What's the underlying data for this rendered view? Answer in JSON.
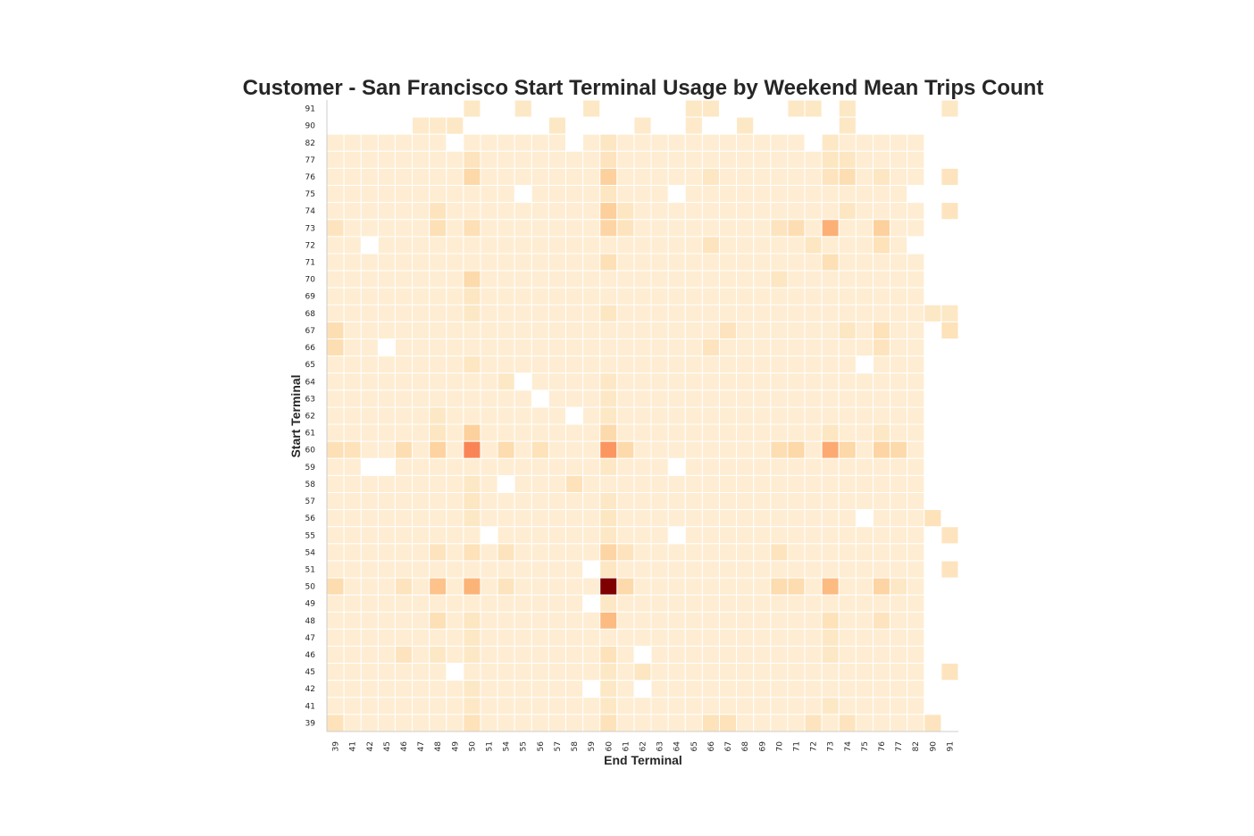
{
  "chart_data": {
    "type": "heatmap",
    "title": "Customer - San Francisco Start Terminal Usage by Weekend Mean Trips Count",
    "xlabel": "End Terminal",
    "ylabel": "Start Terminal",
    "x_categories": [
      "39",
      "41",
      "42",
      "45",
      "46",
      "47",
      "48",
      "49",
      "50",
      "51",
      "54",
      "55",
      "56",
      "57",
      "58",
      "59",
      "60",
      "61",
      "62",
      "63",
      "64",
      "65",
      "66",
      "67",
      "68",
      "69",
      "70",
      "71",
      "72",
      "73",
      "74",
      "75",
      "76",
      "77",
      "82",
      "90",
      "91"
    ],
    "y_categories": [
      "91",
      "90",
      "82",
      "77",
      "76",
      "75",
      "74",
      "73",
      "72",
      "71",
      "70",
      "69",
      "68",
      "67",
      "66",
      "65",
      "64",
      "63",
      "62",
      "61",
      "60",
      "59",
      "58",
      "57",
      "56",
      "55",
      "54",
      "51",
      "50",
      "49",
      "48",
      "47",
      "46",
      "45",
      "42",
      "41",
      "39"
    ],
    "colormap": "OrRd",
    "colors": {
      "low": "#fff7ec",
      "mid": "#fdbb84",
      "high": "#7f0000",
      "grid": "#ffffff",
      "axis": "#cccccc"
    },
    "grid": false,
    "legend": "none",
    "default_value": 0.3,
    "missing": [
      [
        "91",
        "39"
      ],
      [
        "91",
        "41"
      ],
      [
        "91",
        "42"
      ],
      [
        "91",
        "45"
      ],
      [
        "91",
        "46"
      ],
      [
        "91",
        "47"
      ],
      [
        "91",
        "48"
      ],
      [
        "91",
        "49"
      ],
      [
        "91",
        "51"
      ],
      [
        "91",
        "54"
      ],
      [
        "91",
        "56"
      ],
      [
        "91",
        "57"
      ],
      [
        "91",
        "58"
      ],
      [
        "91",
        "60"
      ],
      [
        "91",
        "61"
      ],
      [
        "91",
        "62"
      ],
      [
        "91",
        "63"
      ],
      [
        "91",
        "64"
      ],
      [
        "91",
        "67"
      ],
      [
        "91",
        "68"
      ],
      [
        "91",
        "69"
      ],
      [
        "91",
        "70"
      ],
      [
        "91",
        "73"
      ],
      [
        "91",
        "75"
      ],
      [
        "91",
        "76"
      ],
      [
        "91",
        "77"
      ],
      [
        "91",
        "82"
      ],
      [
        "91",
        "90"
      ],
      [
        "90",
        "39"
      ],
      [
        "90",
        "41"
      ],
      [
        "90",
        "42"
      ],
      [
        "90",
        "45"
      ],
      [
        "90",
        "46"
      ],
      [
        "90",
        "50"
      ],
      [
        "90",
        "51"
      ],
      [
        "90",
        "54"
      ],
      [
        "90",
        "55"
      ],
      [
        "90",
        "56"
      ],
      [
        "90",
        "58"
      ],
      [
        "90",
        "59"
      ],
      [
        "90",
        "60"
      ],
      [
        "90",
        "61"
      ],
      [
        "90",
        "63"
      ],
      [
        "90",
        "64"
      ],
      [
        "90",
        "66"
      ],
      [
        "90",
        "67"
      ],
      [
        "90",
        "69"
      ],
      [
        "90",
        "70"
      ],
      [
        "90",
        "71"
      ],
      [
        "90",
        "72"
      ],
      [
        "90",
        "73"
      ],
      [
        "90",
        "75"
      ],
      [
        "90",
        "76"
      ],
      [
        "90",
        "77"
      ],
      [
        "90",
        "82"
      ],
      [
        "90",
        "90"
      ],
      [
        "90",
        "91"
      ],
      [
        "82",
        "49"
      ],
      [
        "82",
        "58"
      ],
      [
        "82",
        "72"
      ],
      [
        "82",
        "90"
      ],
      [
        "82",
        "91"
      ],
      [
        "77",
        "90"
      ],
      [
        "77",
        "91"
      ],
      [
        "76",
        "90"
      ],
      [
        "75",
        "55"
      ],
      [
        "75",
        "64"
      ],
      [
        "75",
        "82"
      ],
      [
        "75",
        "90"
      ],
      [
        "75",
        "91"
      ],
      [
        "74",
        "90"
      ],
      [
        "73",
        "90"
      ],
      [
        "73",
        "91"
      ],
      [
        "72",
        "42"
      ],
      [
        "72",
        "82"
      ],
      [
        "72",
        "90"
      ],
      [
        "72",
        "91"
      ],
      [
        "71",
        "90"
      ],
      [
        "71",
        "91"
      ],
      [
        "70",
        "90"
      ],
      [
        "70",
        "91"
      ],
      [
        "69",
        "90"
      ],
      [
        "69",
        "91"
      ],
      [
        "67",
        "90"
      ],
      [
        "66",
        "45"
      ],
      [
        "66",
        "90"
      ],
      [
        "66",
        "91"
      ],
      [
        "65",
        "75"
      ],
      [
        "65",
        "90"
      ],
      [
        "65",
        "91"
      ],
      [
        "64",
        "55"
      ],
      [
        "64",
        "90"
      ],
      [
        "64",
        "91"
      ],
      [
        "63",
        "56"
      ],
      [
        "63",
        "90"
      ],
      [
        "63",
        "91"
      ],
      [
        "62",
        "58"
      ],
      [
        "62",
        "90"
      ],
      [
        "62",
        "91"
      ],
      [
        "61",
        "90"
      ],
      [
        "61",
        "91"
      ],
      [
        "60",
        "90"
      ],
      [
        "60",
        "91"
      ],
      [
        "59",
        "42"
      ],
      [
        "59",
        "45"
      ],
      [
        "59",
        "64"
      ],
      [
        "59",
        "90"
      ],
      [
        "59",
        "91"
      ],
      [
        "58",
        "54"
      ],
      [
        "58",
        "90"
      ],
      [
        "58",
        "91"
      ],
      [
        "57",
        "90"
      ],
      [
        "57",
        "91"
      ],
      [
        "56",
        "75"
      ],
      [
        "56",
        "91"
      ],
      [
        "55",
        "51"
      ],
      [
        "55",
        "64"
      ],
      [
        "55",
        "90"
      ],
      [
        "54",
        "90"
      ],
      [
        "54",
        "91"
      ],
      [
        "51",
        "59"
      ],
      [
        "51",
        "90"
      ],
      [
        "50",
        "90"
      ],
      [
        "50",
        "91"
      ],
      [
        "49",
        "59"
      ],
      [
        "49",
        "90"
      ],
      [
        "49",
        "91"
      ],
      [
        "48",
        "90"
      ],
      [
        "48",
        "91"
      ],
      [
        "47",
        "90"
      ],
      [
        "47",
        "91"
      ],
      [
        "46",
        "62"
      ],
      [
        "46",
        "90"
      ],
      [
        "46",
        "91"
      ],
      [
        "45",
        "49"
      ],
      [
        "45",
        "90"
      ],
      [
        "42",
        "59"
      ],
      [
        "42",
        "62"
      ],
      [
        "42",
        "90"
      ],
      [
        "42",
        "91"
      ],
      [
        "41",
        "90"
      ],
      [
        "41",
        "91"
      ],
      [
        "39",
        "91"
      ]
    ],
    "values": [
      [
        "50",
        "60",
        5.0
      ],
      [
        "60",
        "50",
        2.4
      ],
      [
        "60",
        "60",
        2.1
      ],
      [
        "60",
        "73",
        1.75
      ],
      [
        "73",
        "73",
        1.65
      ],
      [
        "50",
        "50",
        1.6
      ],
      [
        "50",
        "73",
        1.45
      ],
      [
        "48",
        "60",
        1.45
      ],
      [
        "50",
        "48",
        1.3
      ],
      [
        "74",
        "60",
        1.05
      ],
      [
        "61",
        "50",
        1.0
      ],
      [
        "73",
        "76",
        1.0
      ],
      [
        "76",
        "60",
        1.0
      ],
      [
        "60",
        "48",
        0.95
      ],
      [
        "60",
        "76",
        0.9
      ],
      [
        "50",
        "76",
        0.9
      ],
      [
        "54",
        "60",
        0.9
      ],
      [
        "60",
        "71",
        0.85
      ],
      [
        "60",
        "74",
        0.85
      ],
      [
        "76",
        "50",
        0.85
      ],
      [
        "73",
        "60",
        0.9
      ],
      [
        "60",
        "61",
        0.8
      ],
      [
        "60",
        "77",
        0.8
      ],
      [
        "70",
        "50",
        0.8
      ],
      [
        "61",
        "60",
        0.8
      ],
      [
        "50",
        "61",
        0.8
      ],
      [
        "50",
        "70",
        0.75
      ],
      [
        "50",
        "71",
        0.75
      ],
      [
        "50",
        "39",
        0.75
      ],
      [
        "60",
        "70",
        0.7
      ],
      [
        "60",
        "39",
        0.65
      ],
      [
        "60",
        "46",
        0.7
      ],
      [
        "60",
        "54",
        0.75
      ],
      [
        "60",
        "41",
        0.6
      ],
      [
        "60",
        "56",
        0.6
      ],
      [
        "67",
        "39",
        0.7
      ],
      [
        "66",
        "39",
        0.7
      ],
      [
        "73",
        "71",
        0.7
      ],
      [
        "73",
        "48",
        0.65
      ],
      [
        "76",
        "74",
        0.7
      ],
      [
        "76",
        "73",
        0.55
      ],
      [
        "71",
        "60",
        0.65
      ],
      [
        "71",
        "73",
        0.65
      ],
      [
        "73",
        "50",
        0.65
      ],
      [
        "73",
        "39",
        0.55
      ],
      [
        "73",
        "61",
        0.55
      ],
      [
        "73",
        "70",
        0.55
      ],
      [
        "72",
        "76",
        0.6
      ],
      [
        "72",
        "66",
        0.55
      ],
      [
        "67",
        "76",
        0.6
      ],
      [
        "67",
        "67",
        0.55
      ],
      [
        "66",
        "76",
        0.55
      ],
      [
        "66",
        "66",
        0.55
      ],
      [
        "39",
        "66",
        0.6
      ],
      [
        "39",
        "67",
        0.6
      ],
      [
        "39",
        "60",
        0.6
      ],
      [
        "39",
        "50",
        0.6
      ],
      [
        "39",
        "39",
        0.6
      ],
      [
        "39",
        "72",
        0.55
      ],
      [
        "39",
        "74",
        0.55
      ],
      [
        "39",
        "90",
        0.55
      ],
      [
        "48",
        "48",
        0.65
      ],
      [
        "48",
        "73",
        0.6
      ],
      [
        "48",
        "76",
        0.55
      ],
      [
        "48",
        "50",
        0.5
      ],
      [
        "46",
        "60",
        0.6
      ],
      [
        "46",
        "46",
        0.55
      ],
      [
        "46",
        "50",
        0.45
      ],
      [
        "46",
        "73",
        0.45
      ],
      [
        "54",
        "48",
        0.55
      ],
      [
        "54",
        "50",
        0.6
      ],
      [
        "54",
        "54",
        0.55
      ],
      [
        "54",
        "61",
        0.55
      ],
      [
        "54",
        "70",
        0.55
      ],
      [
        "50",
        "46",
        0.55
      ],
      [
        "50",
        "54",
        0.55
      ],
      [
        "50",
        "77",
        0.45
      ],
      [
        "58",
        "58",
        0.6
      ],
      [
        "58",
        "50",
        0.45
      ],
      [
        "57",
        "50",
        0.5
      ],
      [
        "56",
        "90",
        0.6
      ],
      [
        "56",
        "60",
        0.5
      ],
      [
        "55",
        "91",
        0.55
      ],
      [
        "51",
        "91",
        0.55
      ],
      [
        "51",
        "60",
        0.5
      ],
      [
        "45",
        "91",
        0.55
      ],
      [
        "45",
        "62",
        0.5
      ],
      [
        "74",
        "48",
        0.55
      ],
      [
        "74",
        "61",
        0.5
      ],
      [
        "74",
        "74",
        0.5
      ],
      [
        "74",
        "91",
        0.55
      ],
      [
        "76",
        "91",
        0.55
      ],
      [
        "76",
        "66",
        0.5
      ],
      [
        "76",
        "76",
        0.5
      ],
      [
        "77",
        "60",
        0.55
      ],
      [
        "77",
        "50",
        0.55
      ],
      [
        "77",
        "73",
        0.5
      ],
      [
        "77",
        "74",
        0.5
      ],
      [
        "91",
        "50",
        0.45
      ],
      [
        "91",
        "55",
        0.45
      ],
      [
        "91",
        "59",
        0.45
      ],
      [
        "91",
        "65",
        0.45
      ],
      [
        "91",
        "66",
        0.45
      ],
      [
        "91",
        "71",
        0.45
      ],
      [
        "91",
        "72",
        0.45
      ],
      [
        "91",
        "74",
        0.45
      ],
      [
        "91",
        "91",
        0.45
      ],
      [
        "90",
        "47",
        0.4
      ],
      [
        "90",
        "48",
        0.4
      ],
      [
        "90",
        "49",
        0.45
      ],
      [
        "90",
        "57",
        0.45
      ],
      [
        "90",
        "62",
        0.4
      ],
      [
        "90",
        "65",
        0.4
      ],
      [
        "90",
        "68",
        0.45
      ],
      [
        "90",
        "74",
        0.45
      ],
      [
        "68",
        "90",
        0.45
      ],
      [
        "68",
        "91",
        0.45
      ],
      [
        "68",
        "60",
        0.5
      ],
      [
        "68",
        "50",
        0.45
      ],
      [
        "67",
        "91",
        0.6
      ],
      [
        "67",
        "74",
        0.5
      ],
      [
        "62",
        "48",
        0.45
      ],
      [
        "64",
        "54",
        0.45
      ],
      [
        "61",
        "48",
        0.5
      ],
      [
        "61",
        "73",
        0.5
      ],
      [
        "61",
        "76",
        0.45
      ],
      [
        "72",
        "72",
        0.5
      ],
      [
        "70",
        "70",
        0.5
      ],
      [
        "75",
        "60",
        0.5
      ],
      [
        "65",
        "50",
        0.5
      ],
      [
        "82",
        "60",
        0.5
      ],
      [
        "82",
        "73",
        0.45
      ],
      [
        "69",
        "50",
        0.5
      ],
      [
        "47",
        "73",
        0.45
      ],
      [
        "49",
        "60",
        0.45
      ],
      [
        "42",
        "60",
        0.45
      ],
      [
        "41",
        "60",
        0.45
      ],
      [
        "41",
        "73",
        0.45
      ],
      [
        "45",
        "60",
        0.45
      ],
      [
        "64",
        "60",
        0.45
      ],
      [
        "63",
        "60",
        0.45
      ],
      [
        "62",
        "60",
        0.45
      ],
      [
        "57",
        "60",
        0.45
      ],
      [
        "59",
        "60",
        0.45
      ],
      [
        "55",
        "60",
        0.45
      ],
      [
        "56",
        "50",
        0.45
      ],
      [
        "42",
        "50",
        0.45
      ],
      [
        "41",
        "50",
        0.45
      ],
      [
        "47",
        "50",
        0.45
      ],
      [
        "46",
        "48",
        0.45
      ]
    ]
  }
}
